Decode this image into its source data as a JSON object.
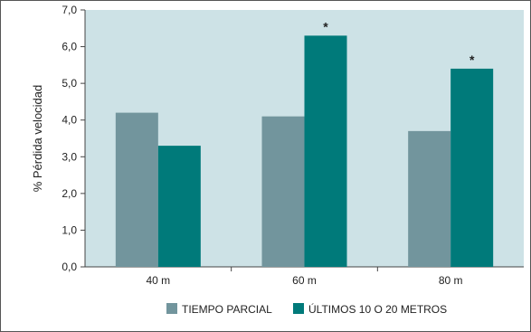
{
  "chart_data": {
    "type": "bar",
    "title": "",
    "xlabel": "",
    "ylabel": "% Pérdida velocidad",
    "categories": [
      "40 m",
      "60 m",
      "80 m"
    ],
    "series": [
      {
        "name": "TIEMPO PARCIAL",
        "color": "#72959d",
        "values": [
          4.2,
          4.1,
          3.7
        ]
      },
      {
        "name": "ÚLTIMOS 10 O 20 METROS",
        "color": "#007a7a",
        "values": [
          3.3,
          6.3,
          5.4
        ]
      }
    ],
    "ylim": [
      0,
      7
    ],
    "yticks": [
      "0,0",
      "1,0",
      "2,0",
      "3,0",
      "4,0",
      "5,0",
      "6,0",
      "7,0"
    ],
    "annotations": [
      {
        "category": "60 m",
        "series": "ÚLTIMOS 10 O 20 METROS",
        "text": "*"
      },
      {
        "category": "80 m",
        "series": "ÚLTIMOS 10 O 20 METROS",
        "text": "*"
      }
    ],
    "grid": false,
    "legend": "bottom",
    "plot_background": "#cde2e6"
  }
}
